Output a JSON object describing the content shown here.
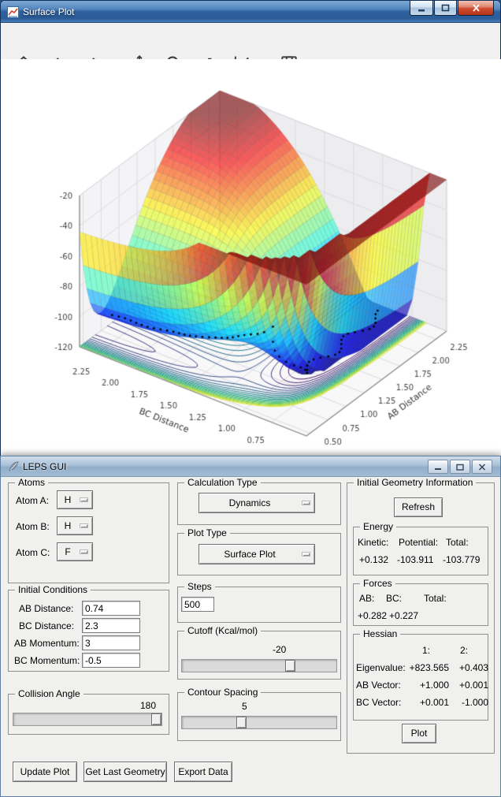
{
  "surface_window": {
    "title": "Surface Plot",
    "toolbar_icons": [
      "home",
      "back",
      "forward",
      "pan",
      "zoom",
      "configure-subplots",
      "edit-axis",
      "save"
    ]
  },
  "chart_data": {
    "type": "surface",
    "xlabel": "BC Distance",
    "ylabel": "AB Distance",
    "x_ticks": [
      "2.25",
      "2.00",
      "1.75",
      "1.50",
      "1.25",
      "1.00",
      "0.75"
    ],
    "y_ticks": [
      "0.50",
      "0.75",
      "1.00",
      "1.25",
      "1.50",
      "1.75",
      "2.00",
      "2.25"
    ],
    "z_ticks": [
      "-20",
      "-40",
      "-60",
      "-80",
      "-100",
      "-120"
    ],
    "x_range": [
      0.45,
      2.4
    ],
    "y_range": [
      0.45,
      2.4
    ],
    "z_range": [
      -120,
      -20
    ],
    "surface": "LEPS potential energy surface for H + H + F (collinear), clipped at cutoff -20 kcal/mol, with projected contour map and black dotted dynamics trajectory",
    "colormap": "jet",
    "contour_colormap": "viridis",
    "contour_spacing": 5,
    "cutoff": -20,
    "trajectory_start": {
      "AB": 0.74,
      "BC": 2.3
    }
  },
  "leps_window": {
    "title": "LEPS GUI",
    "atoms": {
      "legend": "Atoms",
      "rows": [
        {
          "label": "Atom A:",
          "value": "H"
        },
        {
          "label": "Atom B:",
          "value": "H"
        },
        {
          "label": "Atom C:",
          "value": "F"
        }
      ]
    },
    "calculation_type": {
      "legend": "Calculation Type",
      "value": "Dynamics"
    },
    "plot_type": {
      "legend": "Plot Type",
      "value": "Surface Plot"
    },
    "initial_conditions": {
      "legend": "Initial Conditions",
      "fields": [
        {
          "label": "AB Distance:",
          "value": "0.74"
        },
        {
          "label": "BC Distance:",
          "value": "2.3"
        },
        {
          "label": "AB Momentum:",
          "value": "3"
        },
        {
          "label": "BC Momentum:",
          "value": "-0.5"
        }
      ]
    },
    "steps": {
      "legend": "Steps",
      "value": "500"
    },
    "cutoff": {
      "legend": "Cutoff (Kcal/mol)",
      "value": "-20"
    },
    "contour_spacing": {
      "legend": "Contour Spacing",
      "value": "5"
    },
    "collision_angle": {
      "legend": "Collision Angle",
      "value": "180"
    },
    "geometry_info": {
      "legend": "Initial Geometry Information",
      "refresh_label": "Refresh",
      "energy": {
        "legend": "Energy",
        "headers": [
          "Kinetic:",
          "Potential:",
          "Total:"
        ],
        "values": [
          "+0.132",
          "-103.911",
          "-103.779"
        ]
      },
      "forces": {
        "legend": "Forces",
        "headers": [
          "AB:",
          "BC:",
          "Total:"
        ],
        "values": [
          "+0.282",
          "+0.227"
        ]
      },
      "hessian": {
        "legend": "Hessian",
        "col_headers": [
          "1:",
          "2:"
        ],
        "rows": [
          {
            "label": "Eigenvalue:",
            "v1": "+823.565",
            "v2": "+0.403"
          },
          {
            "label": "AB Vector:",
            "v1": "+1.000",
            "v2": "+0.001"
          },
          {
            "label": "BC Vector:",
            "v1": "+0.001",
            "v2": "-1.000"
          }
        ]
      },
      "plot_label": "Plot"
    },
    "actions": {
      "update_plot": "Update Plot",
      "get_last_geometry": "Get Last Geometry",
      "export_data": "Export Data"
    }
  }
}
